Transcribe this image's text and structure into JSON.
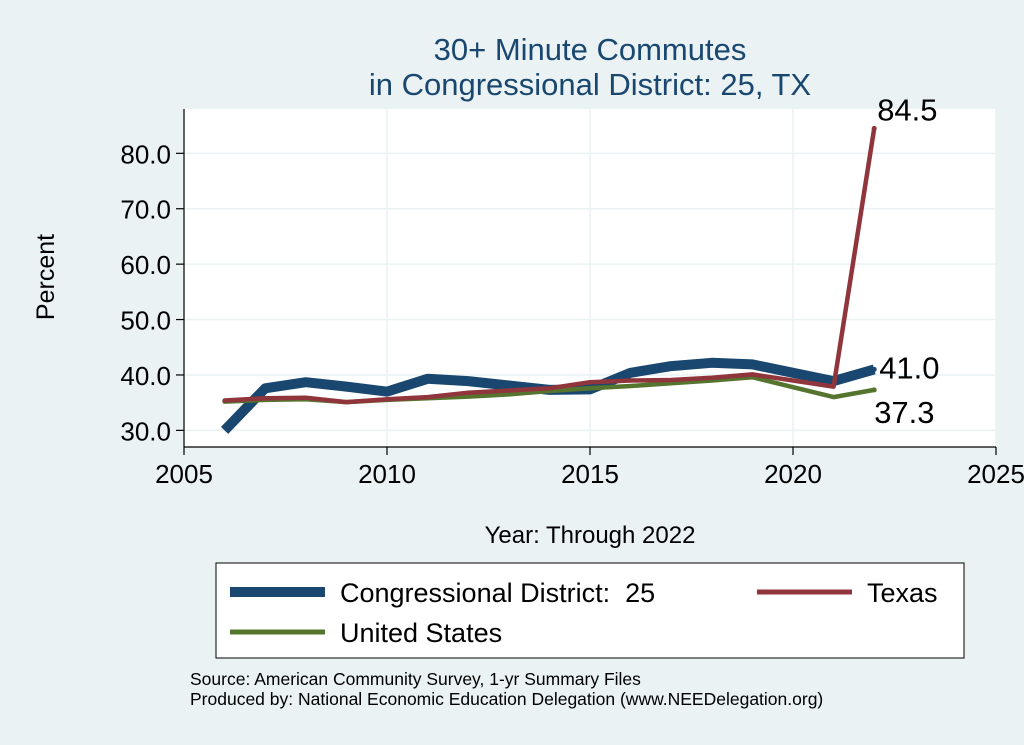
{
  "chart_data": {
    "type": "line",
    "title": [
      "30+ Minute Commutes",
      "in Congressional District:  25, TX"
    ],
    "xlabel": "Year: Through 2022",
    "ylabel": "Percent",
    "xlim": [
      2005,
      2025
    ],
    "ylim": [
      27,
      88
    ],
    "xticks": [
      2005,
      2010,
      2015,
      2020,
      2025
    ],
    "yticks": [
      30,
      40,
      50,
      60,
      70,
      80
    ],
    "ytick_labels": [
      "30.0",
      "40.0",
      "50.0",
      "60.0",
      "70.0",
      "80.0"
    ],
    "grid": true,
    "legend_placement": "bottom",
    "series": [
      {
        "name": "Congressional District:  25",
        "color": "#1a476f",
        "x": [
          2006,
          2007,
          2008,
          2009,
          2010,
          2011,
          2012,
          2013,
          2014,
          2015,
          2016,
          2017,
          2018,
          2019,
          2020,
          2021,
          2022
        ],
        "values": [
          30.0,
          37.6,
          38.7,
          37.9,
          37.0,
          39.3,
          38.9,
          38.1,
          37.3,
          37.4,
          40.4,
          41.6,
          42.2,
          41.9,
          40.4,
          38.9,
          41.0
        ]
      },
      {
        "name": "Texas",
        "color": "#90353b",
        "x": [
          2006,
          2007,
          2008,
          2009,
          2010,
          2011,
          2012,
          2013,
          2014,
          2015,
          2016,
          2017,
          2018,
          2019,
          2020,
          2021,
          2022
        ],
        "values": [
          35.4,
          35.8,
          35.9,
          35.1,
          35.6,
          36.0,
          36.8,
          37.2,
          37.6,
          38.7,
          39.0,
          39.1,
          39.5,
          40.1,
          39.0,
          37.9,
          84.5
        ]
      },
      {
        "name": "United States",
        "color": "#55752f",
        "x": [
          2006,
          2007,
          2008,
          2009,
          2010,
          2011,
          2012,
          2013,
          2014,
          2015,
          2016,
          2017,
          2018,
          2019,
          2020,
          2021,
          2022
        ],
        "values": [
          35.2,
          35.5,
          35.6,
          35.1,
          35.5,
          35.8,
          36.1,
          36.5,
          37.1,
          37.6,
          38.0,
          38.5,
          39.0,
          39.6,
          37.8,
          36.0,
          37.3
        ]
      }
    ],
    "end_labels": [
      "84.5",
      "41.0",
      "37.3"
    ]
  },
  "footer": {
    "source": "Source: American Community Survey, 1-yr Summary Files",
    "producer": "Produced by: National Economic Education Delegation (www.NEEDelegation.org)"
  }
}
